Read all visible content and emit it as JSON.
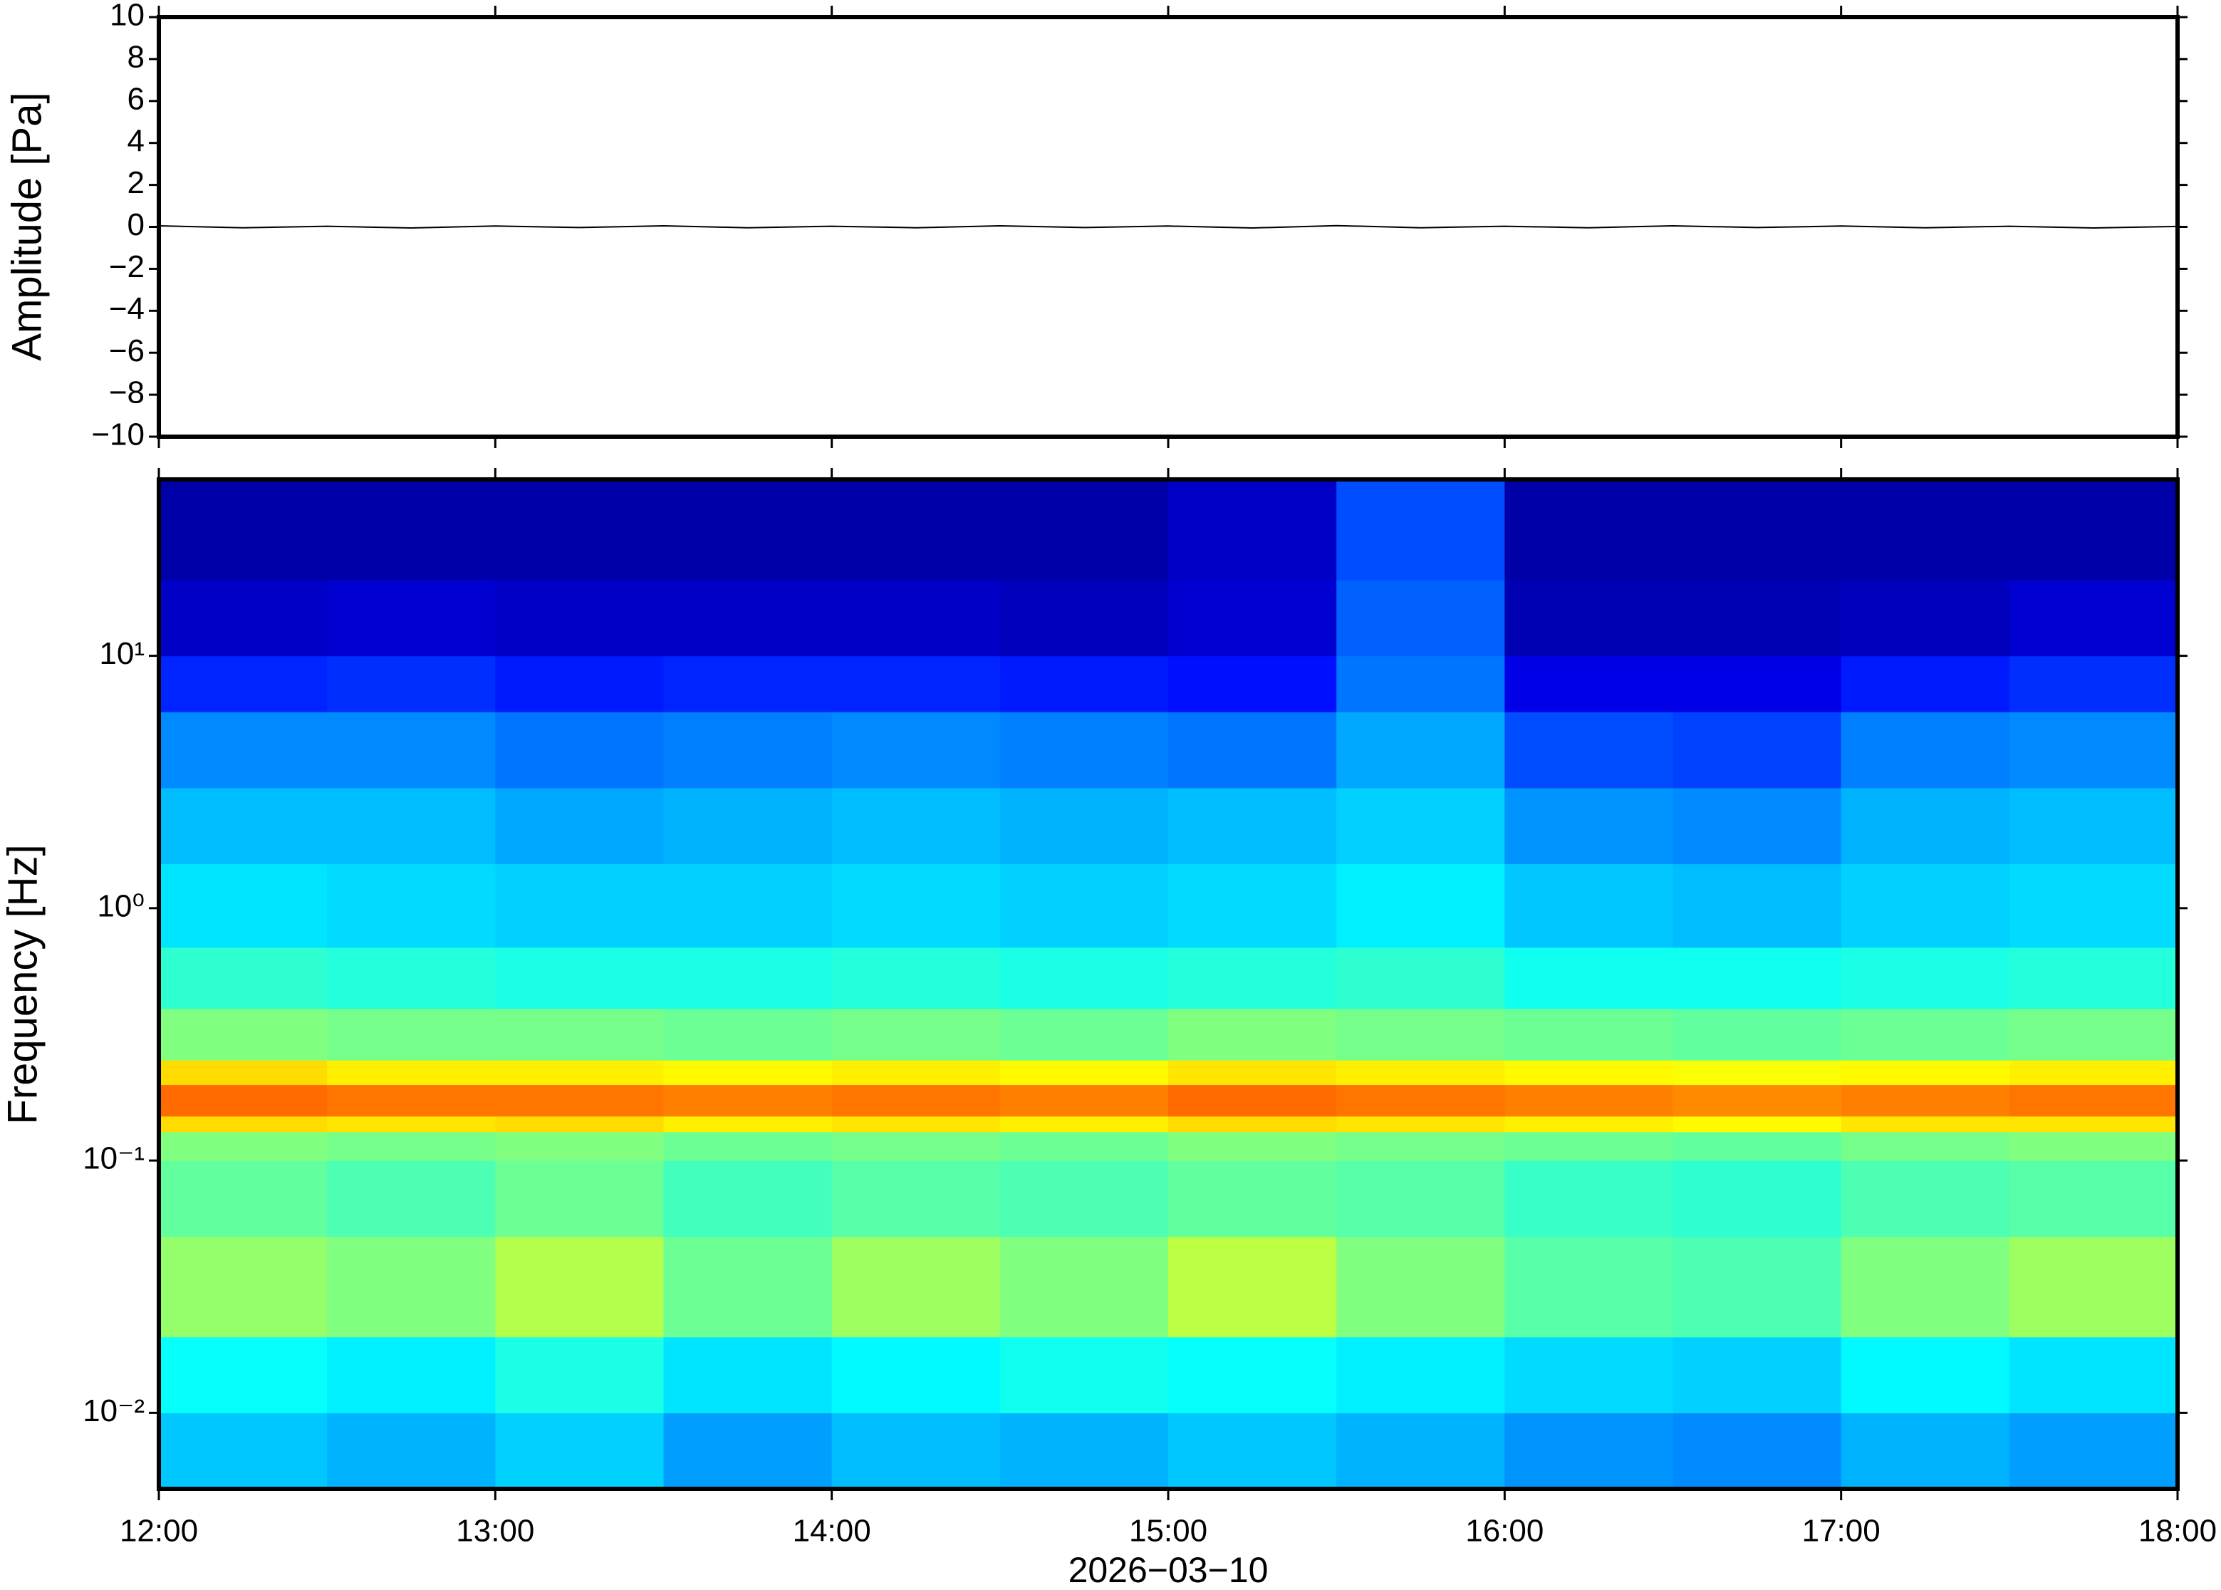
{
  "chart_data": [
    {
      "type": "line",
      "ylabel": "Amplitude [Pa]",
      "color": "#000000",
      "xlim": [
        "12:00",
        "18:00"
      ],
      "ylim": [
        -10,
        10
      ],
      "yticks": [
        {
          "value": -10,
          "label": "−10"
        },
        {
          "value": -8,
          "label": "−8"
        },
        {
          "value": -6,
          "label": "−6"
        },
        {
          "value": -4,
          "label": "−4"
        },
        {
          "value": -2,
          "label": "−2"
        },
        0,
        2,
        4,
        6,
        8,
        10
      ],
      "x": [
        "12:00",
        "12:15",
        "12:30",
        "12:45",
        "13:00",
        "13:15",
        "13:30",
        "13:45",
        "14:00",
        "14:15",
        "14:30",
        "14:45",
        "15:00",
        "15:15",
        "15:30",
        "15:45",
        "16:00",
        "16:15",
        "16:30",
        "16:45",
        "17:00",
        "17:15",
        "17:30",
        "17:45",
        "18:00"
      ],
      "values": [
        0.05,
        -0.04,
        0.03,
        -0.05,
        0.04,
        -0.03,
        0.05,
        -0.04,
        0.03,
        -0.04,
        0.05,
        -0.03,
        0.04,
        -0.05,
        0.06,
        -0.04,
        0.03,
        -0.04,
        0.05,
        -0.03,
        0.04,
        -0.04,
        0.03,
        -0.05,
        0.02
      ]
    },
    {
      "type": "heatmap",
      "ylabel": "Frequency [Hz]",
      "xlabel": "2026−03−10",
      "colormap": "jet",
      "ylog": true,
      "xlim": [
        "12:00",
        "18:00"
      ],
      "xticks": [
        "12:00",
        "13:00",
        "14:00",
        "15:00",
        "16:00",
        "17:00",
        "18:00"
      ],
      "ylim": [
        0.005,
        50
      ],
      "yticks": [
        {
          "value": 0.01,
          "label": "10⁻²"
        },
        {
          "value": 0.1,
          "label": "10⁻¹"
        },
        {
          "value": 1,
          "label": "10⁰"
        },
        {
          "value": 10,
          "label": "10¹"
        }
      ],
      "xbins": [
        "12:00",
        "12:30",
        "13:00",
        "13:30",
        "14:00",
        "14:30",
        "15:00",
        "15:30",
        "16:00",
        "16:30",
        "17:00",
        "17:30",
        "18:00"
      ],
      "ybins": [
        0.005,
        0.01,
        0.02,
        0.05,
        0.1,
        0.13,
        0.15,
        0.2,
        0.25,
        0.4,
        0.7,
        1.5,
        3,
        6,
        10,
        20,
        50
      ],
      "values": [
        [
          0.32,
          0.3,
          0.33,
          0.28,
          0.31,
          0.3,
          0.32,
          0.3,
          0.27,
          0.26,
          0.3,
          0.28
        ],
        [
          0.38,
          0.36,
          0.4,
          0.35,
          0.37,
          0.39,
          0.38,
          0.36,
          0.34,
          0.33,
          0.37,
          0.35
        ],
        [
          0.52,
          0.5,
          0.55,
          0.48,
          0.53,
          0.5,
          0.56,
          0.5,
          0.46,
          0.45,
          0.5,
          0.53
        ],
        [
          0.47,
          0.45,
          0.48,
          0.44,
          0.46,
          0.45,
          0.47,
          0.46,
          0.43,
          0.42,
          0.45,
          0.46
        ],
        [
          0.5,
          0.49,
          0.5,
          0.48,
          0.49,
          0.48,
          0.5,
          0.49,
          0.48,
          0.47,
          0.49,
          0.5
        ],
        [
          0.66,
          0.65,
          0.66,
          0.64,
          0.65,
          0.64,
          0.66,
          0.65,
          0.64,
          0.63,
          0.65,
          0.65
        ],
        [
          0.77,
          0.76,
          0.76,
          0.75,
          0.76,
          0.75,
          0.77,
          0.76,
          0.75,
          0.74,
          0.75,
          0.76
        ],
        [
          0.66,
          0.64,
          0.64,
          0.63,
          0.64,
          0.63,
          0.65,
          0.64,
          0.63,
          0.62,
          0.63,
          0.64
        ],
        [
          0.5,
          0.49,
          0.49,
          0.48,
          0.49,
          0.48,
          0.5,
          0.49,
          0.48,
          0.47,
          0.48,
          0.49
        ],
        [
          0.42,
          0.41,
          0.4,
          0.4,
          0.41,
          0.4,
          0.41,
          0.42,
          0.39,
          0.39,
          0.4,
          0.41
        ],
        [
          0.35,
          0.34,
          0.33,
          0.33,
          0.34,
          0.33,
          0.34,
          0.36,
          0.32,
          0.31,
          0.33,
          0.34
        ],
        [
          0.31,
          0.31,
          0.29,
          0.3,
          0.31,
          0.3,
          0.31,
          0.33,
          0.27,
          0.26,
          0.3,
          0.31
        ],
        [
          0.26,
          0.26,
          0.24,
          0.25,
          0.26,
          0.25,
          0.24,
          0.29,
          0.2,
          0.19,
          0.25,
          0.26
        ],
        [
          0.16,
          0.17,
          0.15,
          0.16,
          0.16,
          0.15,
          0.14,
          0.24,
          0.1,
          0.1,
          0.15,
          0.17
        ],
        [
          0.07,
          0.08,
          0.07,
          0.07,
          0.07,
          0.06,
          0.08,
          0.22,
          0.05,
          0.05,
          0.06,
          0.08
        ],
        [
          0.04,
          0.04,
          0.04,
          0.04,
          0.04,
          0.04,
          0.07,
          0.2,
          0.04,
          0.04,
          0.04,
          0.04
        ]
      ]
    }
  ]
}
